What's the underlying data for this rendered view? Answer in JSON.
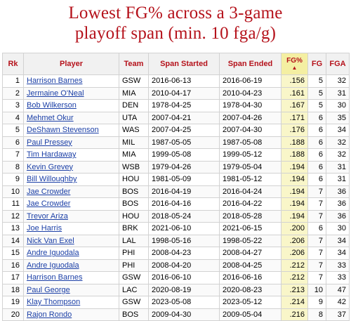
{
  "title_line1": "Lowest FG% across a 3-game",
  "title_line2": "playoff span (min. 10 fga/g)",
  "colors": {
    "title": "#b5121b",
    "header_text": "#b5121b",
    "link": "#1b3fa6",
    "sorted_col": "#f9f6c9"
  },
  "headers": {
    "rk": "Rk",
    "player": "Player",
    "team": "Team",
    "start": "Span Started",
    "end": "Span Ended",
    "fgp": "FG%",
    "fgp_sort_icon": "▲",
    "fg": "FG",
    "fga": "FGA"
  },
  "rows": [
    {
      "rk": "1",
      "player": "Harrison Barnes",
      "team": "GSW",
      "start": "2016-06-13",
      "end": "2016-06-19",
      "fgp": ".156",
      "fg": "5",
      "fga": "32"
    },
    {
      "rk": "2",
      "player": "Jermaine O'Neal",
      "team": "MIA",
      "start": "2010-04-17",
      "end": "2010-04-23",
      "fgp": ".161",
      "fg": "5",
      "fga": "31"
    },
    {
      "rk": "3",
      "player": "Bob Wilkerson",
      "team": "DEN",
      "start": "1978-04-25",
      "end": "1978-04-30",
      "fgp": ".167",
      "fg": "5",
      "fga": "30"
    },
    {
      "rk": "4",
      "player": "Mehmet Okur",
      "team": "UTA",
      "start": "2007-04-21",
      "end": "2007-04-26",
      "fgp": ".171",
      "fg": "6",
      "fga": "35"
    },
    {
      "rk": "5",
      "player": "DeShawn Stevenson",
      "team": "WAS",
      "start": "2007-04-25",
      "end": "2007-04-30",
      "fgp": ".176",
      "fg": "6",
      "fga": "34"
    },
    {
      "rk": "6",
      "player": "Paul Pressey",
      "team": "MIL",
      "start": "1987-05-05",
      "end": "1987-05-08",
      "fgp": ".188",
      "fg": "6",
      "fga": "32"
    },
    {
      "rk": "7",
      "player": "Tim Hardaway",
      "team": "MIA",
      "start": "1999-05-08",
      "end": "1999-05-12",
      "fgp": ".188",
      "fg": "6",
      "fga": "32"
    },
    {
      "rk": "8",
      "player": "Kevin Grevey",
      "team": "WSB",
      "start": "1979-04-26",
      "end": "1979-05-04",
      "fgp": ".194",
      "fg": "6",
      "fga": "31"
    },
    {
      "rk": "9",
      "player": "Bill Willoughby",
      "team": "HOU",
      "start": "1981-05-09",
      "end": "1981-05-12",
      "fgp": ".194",
      "fg": "6",
      "fga": "31"
    },
    {
      "rk": "10",
      "player": "Jae Crowder",
      "team": "BOS",
      "start": "2016-04-19",
      "end": "2016-04-24",
      "fgp": ".194",
      "fg": "7",
      "fga": "36"
    },
    {
      "rk": "11",
      "player": "Jae Crowder",
      "team": "BOS",
      "start": "2016-04-16",
      "end": "2016-04-22",
      "fgp": ".194",
      "fg": "7",
      "fga": "36"
    },
    {
      "rk": "12",
      "player": "Trevor Ariza",
      "team": "HOU",
      "start": "2018-05-24",
      "end": "2018-05-28",
      "fgp": ".194",
      "fg": "7",
      "fga": "36"
    },
    {
      "rk": "13",
      "player": "Joe Harris",
      "team": "BRK",
      "start": "2021-06-10",
      "end": "2021-06-15",
      "fgp": ".200",
      "fg": "6",
      "fga": "30"
    },
    {
      "rk": "14",
      "player": "Nick Van Exel",
      "team": "LAL",
      "start": "1998-05-16",
      "end": "1998-05-22",
      "fgp": ".206",
      "fg": "7",
      "fga": "34"
    },
    {
      "rk": "15",
      "player": "Andre Iguodala",
      "team": "PHI",
      "start": "2008-04-23",
      "end": "2008-04-27",
      "fgp": ".206",
      "fg": "7",
      "fga": "34"
    },
    {
      "rk": "16",
      "player": "Andre Iguodala",
      "team": "PHI",
      "start": "2008-04-20",
      "end": "2008-04-25",
      "fgp": ".212",
      "fg": "7",
      "fga": "33"
    },
    {
      "rk": "17",
      "player": "Harrison Barnes",
      "team": "GSW",
      "start": "2016-06-10",
      "end": "2016-06-16",
      "fgp": ".212",
      "fg": "7",
      "fga": "33"
    },
    {
      "rk": "18",
      "player": "Paul George",
      "team": "LAC",
      "start": "2020-08-19",
      "end": "2020-08-23",
      "fgp": ".213",
      "fg": "10",
      "fga": "47"
    },
    {
      "rk": "19",
      "player": "Klay Thompson",
      "team": "GSW",
      "start": "2023-05-08",
      "end": "2023-05-12",
      "fgp": ".214",
      "fg": "9",
      "fga": "42"
    },
    {
      "rk": "20",
      "player": "Rajon Rondo",
      "team": "BOS",
      "start": "2009-04-30",
      "end": "2009-05-04",
      "fgp": ".216",
      "fg": "8",
      "fga": "37"
    }
  ]
}
